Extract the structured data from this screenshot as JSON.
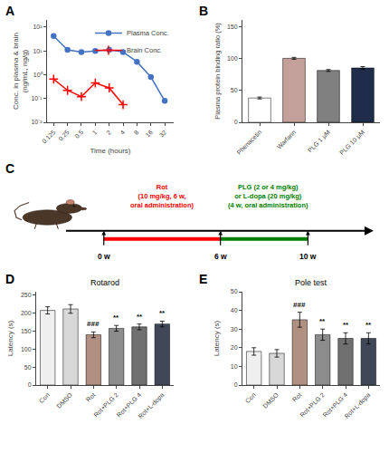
{
  "chart_data": [
    {
      "type": "line",
      "log": true,
      "x": [
        0.125,
        0.25,
        0.5,
        1,
        2,
        4,
        8,
        16,
        32
      ],
      "series": [
        {
          "name": "Plasma Conc.",
          "color": "#4472C4",
          "marker": "circle",
          "values": [
            42,
            11,
            9,
            10,
            11,
            9,
            3.5,
            0.8,
            0.08
          ]
        },
        {
          "name": "Brain Conc.",
          "color": "#FF0000",
          "marker": "plus",
          "values": [
            0.65,
            0.22,
            0.12,
            0.45,
            0.28,
            0.055,
            null,
            null,
            null
          ]
        }
      ],
      "xlabel": "Time (hours)",
      "ylabel": "Conc. in plasma & brain\n(ng/mL, ng/g)",
      "xlim": [
        0.09,
        50
      ],
      "ylim": [
        0.01,
        200
      ],
      "xticks": [
        0.125,
        0.25,
        0.5,
        1,
        2,
        4,
        8,
        16,
        32
      ],
      "yticks": [
        {
          "value": 0.01,
          "label": "10⁻²"
        },
        {
          "value": 0.1,
          "label": "10⁻¹"
        },
        {
          "value": 1,
          "label": "10⁰"
        },
        {
          "value": 10,
          "label": "10¹"
        },
        {
          "value": 100,
          "label": "10²"
        }
      ],
      "legend": "upper right",
      "grid": false,
      "annotations": [
        {
          "text": "A"
        }
      ]
    },
    {
      "type": "bar",
      "categories": [
        "Phenacetin",
        "Warfarin",
        "PLG 1 μM",
        "PLG 10 μM"
      ],
      "values": [
        38,
        100,
        81,
        85
      ],
      "errors": [
        1.5,
        1.5,
        1.5,
        2.0
      ],
      "colors": [
        "#FFFFFF",
        "#C4A09A",
        "#808080",
        "#1F2D4A"
      ],
      "ylabel": "Plasma protein binding ratio (%)",
      "ylim": [
        0,
        160
      ],
      "yticks": [
        0,
        50,
        100,
        150
      ],
      "grid": false,
      "annotations": [
        {
          "text": "B"
        }
      ]
    },
    {
      "type": "diagram",
      "tick_labels": false,
      "colors": [
        "#FF0000",
        "#008000"
      ],
      "annotations": [
        {
          "text": "C"
        },
        {
          "text": "Rot\n(10 mg/kg, 6 w,\noral administration)"
        },
        {
          "text": "PLG (2 or 4 mg/kg)\nor L-dopa (20 mg/kg)\n(4 w, oral administration)"
        },
        {
          "text": "0 w"
        },
        {
          "text": "6 w"
        },
        {
          "text": "10 w"
        }
      ]
    },
    {
      "type": "bar",
      "title": "Rotarod",
      "categories": [
        "Con",
        "DMSO",
        "Rot",
        "Rot+PLG 2",
        "Rot+PLG 4",
        "Rot+L-dopa"
      ],
      "values": [
        208,
        212,
        140,
        158,
        162,
        170
      ],
      "errors": [
        10,
        12,
        8,
        8,
        8,
        8
      ],
      "colors": [
        "#EFEFEF",
        "#D8D8D8",
        "#B09080",
        "#8C8C8C",
        "#707070",
        "#404858"
      ],
      "ylabel": "Latency (s)",
      "ylim": [
        0,
        260
      ],
      "yticks": [
        0,
        50,
        100,
        150,
        200,
        250
      ],
      "grid": false,
      "annotations": [
        {
          "text": "D"
        },
        {
          "text": "###",
          "x": 2
        },
        {
          "text": "**",
          "x": 3
        },
        {
          "text": "**",
          "x": 4
        },
        {
          "text": "**",
          "x": 5
        }
      ]
    },
    {
      "type": "bar",
      "title": "Pole test",
      "categories": [
        "Con",
        "DMSO",
        "Rot",
        "Rot+PLG 2",
        "Rot+PLG 4",
        "Rot+L-dopa"
      ],
      "values": [
        18,
        17,
        35,
        27,
        25,
        25
      ],
      "errors": [
        2,
        2,
        4,
        3,
        3,
        3
      ],
      "colors": [
        "#EFEFEF",
        "#D8D8D8",
        "#B09080",
        "#8C8C8C",
        "#707070",
        "#404858"
      ],
      "ylabel": "Latency (s)",
      "ylim": [
        0,
        50
      ],
      "yticks": [
        0,
        10,
        20,
        30,
        40,
        50
      ],
      "grid": false,
      "annotations": [
        {
          "text": "E"
        },
        {
          "text": "###",
          "x": 2
        },
        {
          "text": "**",
          "x": 3
        },
        {
          "text": "**",
          "x": 4
        },
        {
          "text": "**",
          "x": 5
        }
      ]
    }
  ]
}
